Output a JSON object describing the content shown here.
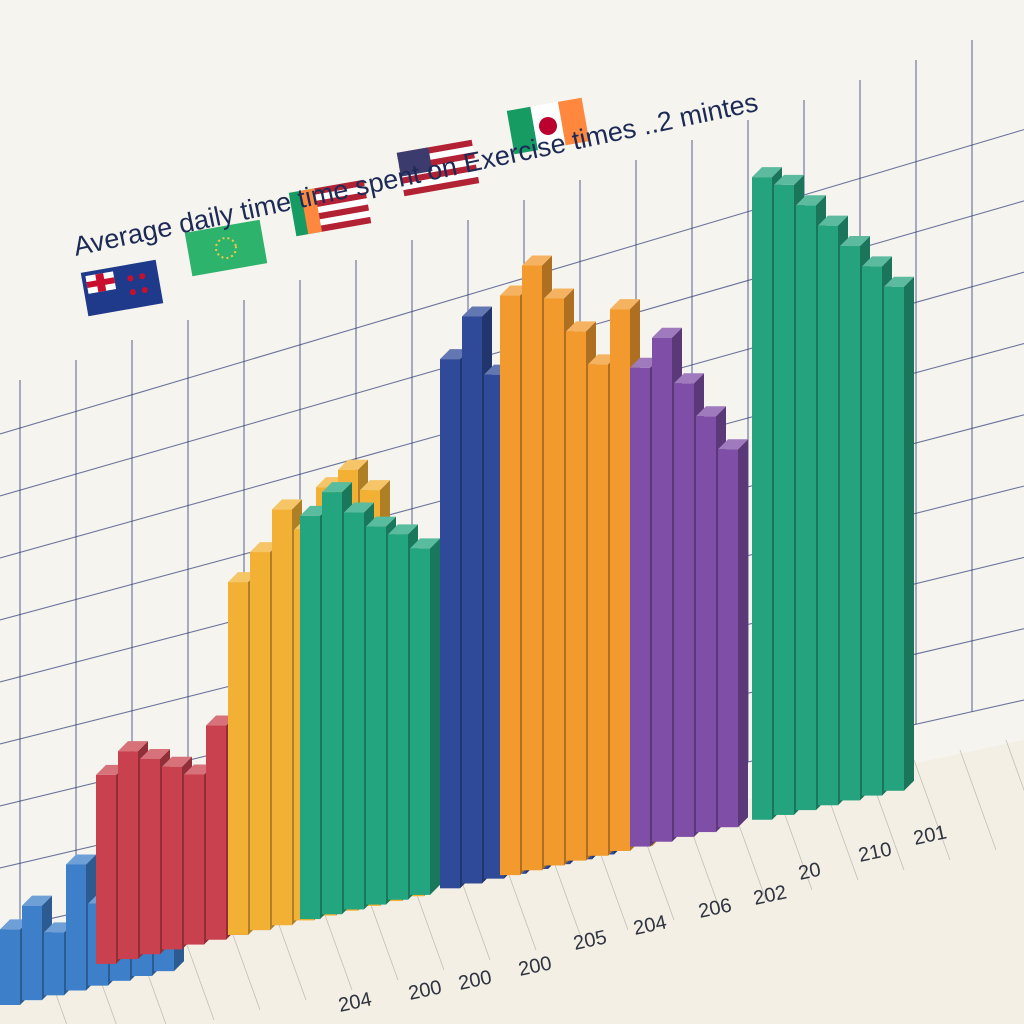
{
  "chart_data": {
    "type": "bar",
    "title": "Average daily time time spent on Exercise times ..2 mintes",
    "xlabel": "",
    "ylabel": "",
    "x_tick_labels": [
      "204",
      "200",
      "200",
      "200",
      "205",
      "204",
      "206",
      "202",
      "20",
      "210",
      "201"
    ],
    "grid": true,
    "legend": {
      "placement": "top-left",
      "entries": [
        {
          "flag": "new-zealand-flag",
          "colors": [
            "#1f3a8a",
            "#c8102e",
            "#ffffff"
          ]
        },
        {
          "flag": "green-star-flag",
          "colors": [
            "#2db36b",
            "#f2c94c"
          ]
        },
        {
          "flag": "ireland-us-flag",
          "colors": [
            "#169b62",
            "#ff883e",
            "#b22234"
          ]
        },
        {
          "flag": "usa-flag",
          "colors": [
            "#b22234",
            "#ffffff",
            "#3c3b6e"
          ]
        },
        {
          "flag": "japan-ireland-flag",
          "colors": [
            "#169b62",
            "#ffffff",
            "#bc002d",
            "#ff883e"
          ]
        }
      ]
    },
    "series": [
      {
        "color": "#3d7fc9",
        "values": [
          12,
          15,
          10,
          20,
          13,
          22,
          16,
          9
        ]
      },
      {
        "color": "#c9414e",
        "values": [
          30,
          33,
          31,
          29,
          27,
          34,
          30,
          26
        ]
      },
      {
        "color": "#f2b134",
        "values": [
          56,
          60,
          66,
          62,
          68,
          70,
          66,
          58,
          50
        ]
      },
      {
        "color": "#23a67f",
        "values": [
          64,
          67,
          63,
          60,
          58,
          55
        ]
      },
      {
        "color": "#2f4a98",
        "values": [
          84,
          90,
          80,
          86,
          76,
          70,
          64,
          72
        ]
      },
      {
        "color": "#f29a2e",
        "values": [
          92,
          96,
          90,
          84,
          78,
          86,
          74
        ]
      },
      {
        "color": "#7f4fa8",
        "values": [
          76,
          80,
          72,
          66,
          60
        ]
      },
      {
        "color": "#25a37e",
        "values": [
          102,
          100,
          96,
          92,
          88,
          84,
          80
        ]
      }
    ]
  }
}
